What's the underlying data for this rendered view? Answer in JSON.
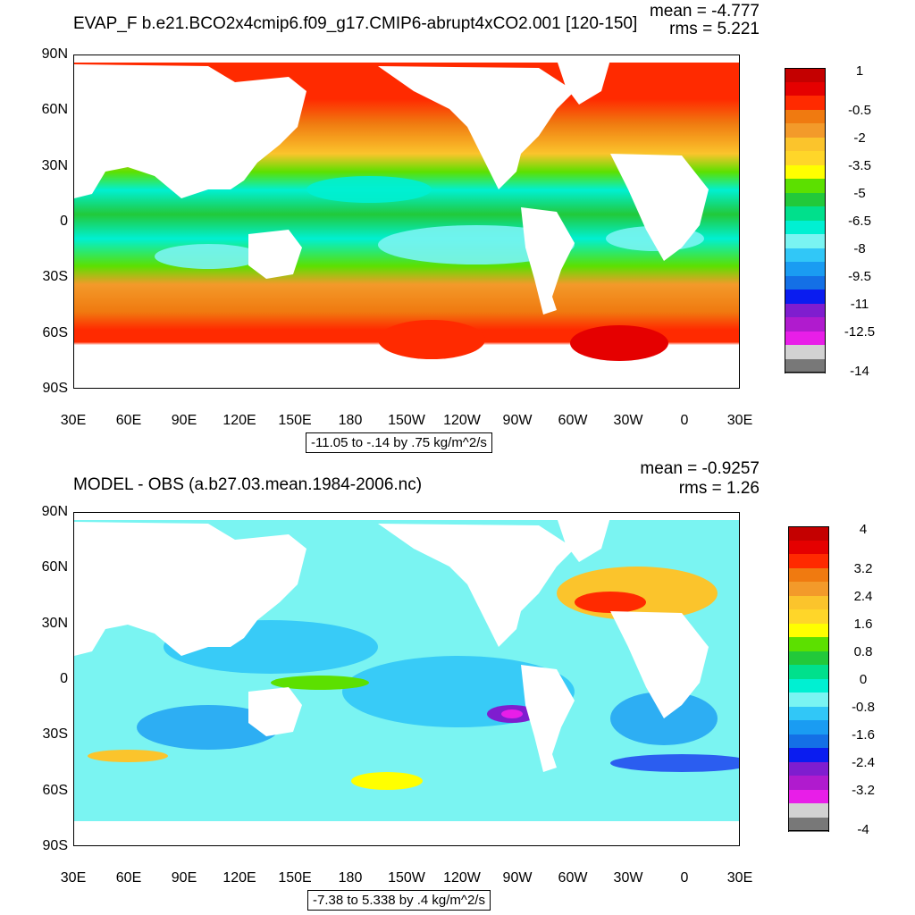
{
  "maps": [
    {
      "id": "top",
      "title": "EVAP_F b.e21.BCO2x4cmip6.f09_g17.CMIP6-abrupt4xCO2.001 [120-150]",
      "mean_text": "mean = -4.777",
      "rms_text": "rms = 5.221",
      "range_text": "-11.05 to -.14 by .75 kg/m^2/s",
      "y_ticks": [
        "90N",
        "60N",
        "30N",
        "0",
        "30S",
        "60S",
        "90S"
      ],
      "x_ticks": [
        "30E",
        "60E",
        "90E",
        "120E",
        "150E",
        "180",
        "150W",
        "120W",
        "90W",
        "60W",
        "30W",
        "0",
        "30E"
      ],
      "colorbar_labels": [
        "1",
        "-0.5",
        "-2",
        "-3.5",
        "-5",
        "-6.5",
        "-8",
        "-9.5",
        "-11",
        "-12.5",
        "-14"
      ],
      "colorbar_colors": [
        "#c40000",
        "#e50000",
        "#ff2a00",
        "#f07a10",
        "#f39a2a",
        "#fbc42c",
        "#ffd629",
        "#ffff00",
        "#5ce000",
        "#22c93a",
        "#00e08c",
        "#00f0d2",
        "#7af4f2",
        "#31c7f7",
        "#1a9cf2",
        "#1470e6",
        "#0a1cf0",
        "#7f1dcf",
        "#b01bce",
        "#e81ee8",
        "#d2d2d2",
        "#787878"
      ]
    },
    {
      "id": "bottom",
      "title": "MODEL - OBS (a.b27.03.mean.1984-2006.nc)",
      "mean_text": "mean = -0.9257",
      "rms_text": "rms = 1.26",
      "range_text": "-7.38 to 5.338 by .4 kg/m^2/s",
      "y_ticks": [
        "90N",
        "60N",
        "30N",
        "0",
        "30S",
        "60S",
        "90S"
      ],
      "x_ticks": [
        "30E",
        "60E",
        "90E",
        "120E",
        "150E",
        "180",
        "150W",
        "120W",
        "90W",
        "60W",
        "30W",
        "0",
        "30E"
      ],
      "colorbar_labels": [
        "4",
        "3.2",
        "2.4",
        "1.6",
        "0.8",
        "0",
        "-0.8",
        "-1.6",
        "-2.4",
        "-3.2",
        "-4"
      ],
      "colorbar_colors": [
        "#c40000",
        "#e50000",
        "#ff2a00",
        "#f07a10",
        "#f39a2a",
        "#fbc42c",
        "#ffd629",
        "#ffff00",
        "#5ce000",
        "#22c93a",
        "#00e08c",
        "#00f0d2",
        "#7af4f2",
        "#31c7f7",
        "#1a9cf2",
        "#1470e6",
        "#0a1cf0",
        "#7f1dcf",
        "#b01bce",
        "#e81ee8",
        "#d2d2d2",
        "#787878"
      ]
    }
  ]
}
